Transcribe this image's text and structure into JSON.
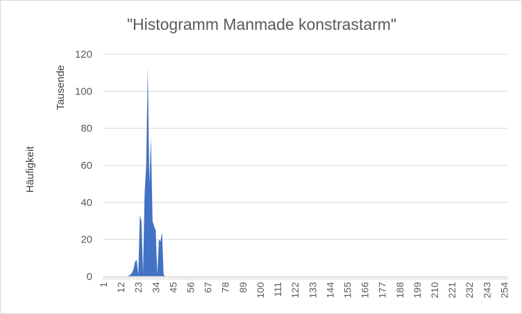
{
  "chart_data": {
    "type": "area",
    "title": "\"Histogramm Manmade konstrastarm\"",
    "ylabel": "Häufigkeit",
    "y_unit_label": "Tausende",
    "xlabel": "",
    "ylim": [
      0,
      120
    ],
    "y_ticks": [
      "0",
      "20",
      "40",
      "60",
      "80",
      "100",
      "120"
    ],
    "x_tick_labels": [
      "1",
      "12",
      "23",
      "34",
      "45",
      "56",
      "67",
      "78",
      "89",
      "100",
      "111",
      "122",
      "133",
      "144",
      "155",
      "166",
      "177",
      "188",
      "199",
      "210",
      "221",
      "232",
      "243",
      "254"
    ],
    "x_range": [
      1,
      256
    ],
    "grid": true,
    "legend": "none",
    "series": [
      {
        "color": "#4472c4",
        "x": [
          16,
          17,
          18,
          19,
          20,
          21,
          22,
          23,
          24,
          25,
          26,
          27,
          28,
          29,
          30,
          31,
          32,
          33,
          34,
          35,
          36,
          37,
          38,
          39,
          40
        ],
        "values": [
          0,
          0.5,
          1,
          2,
          4,
          8,
          9,
          1,
          33,
          30,
          2,
          45,
          60,
          113,
          50,
          75,
          30,
          27,
          25,
          1,
          20,
          19,
          24,
          1,
          0
        ]
      }
    ]
  }
}
